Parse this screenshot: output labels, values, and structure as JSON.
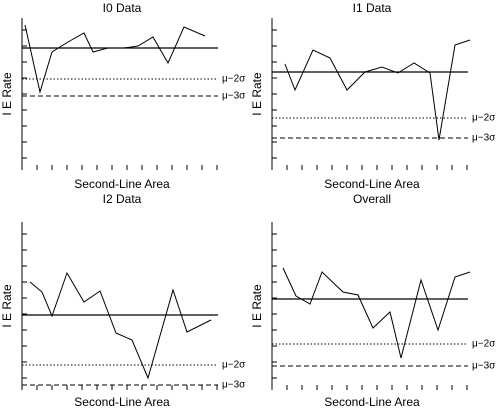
{
  "chart_data": [
    {
      "type": "line",
      "title": "I0 Data",
      "xlabel": "Second-Line Area",
      "ylabel": "I E Rate",
      "x": [
        3,
        18,
        30,
        46,
        62,
        71,
        86,
        102,
        116,
        131,
        146,
        162,
        183
      ],
      "values": [
        145,
        78,
        118,
        128,
        137,
        118,
        122,
        122,
        124,
        133,
        107,
        143,
        134
      ],
      "xlim": [
        0,
        200
      ],
      "ylim": [
        0,
        152
      ],
      "xticks": [
        0,
        15,
        30,
        45,
        60,
        75,
        90,
        105,
        120,
        135,
        150,
        165,
        180,
        195
      ],
      "yticks": [
        12,
        28,
        44,
        60,
        76,
        92,
        108,
        124,
        140
      ],
      "lines": [
        {
          "value": 122,
          "style": "solid"
        },
        {
          "value": 91,
          "style": "dotted",
          "label": "μ−2σ"
        },
        {
          "value": 74,
          "style": "dashed",
          "label": "μ−3σ"
        }
      ]
    },
    {
      "type": "line",
      "title": "I1 Data",
      "xlabel": "Second-Line Area",
      "ylabel": "I E Rate",
      "x": [
        13,
        23,
        41,
        58,
        75,
        93,
        110,
        126,
        142,
        158,
        167,
        183,
        198
      ],
      "values": [
        106,
        80,
        120,
        112,
        80,
        98,
        103,
        97,
        107,
        97,
        30,
        125,
        130
      ],
      "xlim": [
        0,
        200
      ],
      "ylim": [
        0,
        152
      ],
      "xticks": [
        0,
        15,
        30,
        45,
        60,
        75,
        90,
        105,
        120,
        135,
        150,
        165,
        180,
        195
      ],
      "yticks": [
        12,
        28,
        44,
        60,
        76,
        92,
        108,
        124,
        140
      ],
      "lines": [
        {
          "value": 98,
          "style": "solid"
        },
        {
          "value": 52,
          "style": "dotted",
          "label": "μ−2σ"
        },
        {
          "value": 32,
          "style": "dashed",
          "label": "μ−3σ"
        }
      ]
    },
    {
      "type": "line",
      "title": "I2 Data",
      "xlabel": "Second-Line Area",
      "ylabel": "I E Rate",
      "x": [
        8,
        20,
        30,
        45,
        62,
        78,
        94,
        110,
        126,
        151,
        165,
        189
      ],
      "values": [
        108,
        98,
        74,
        117,
        88,
        99,
        57,
        50,
        12,
        100,
        58,
        70
      ],
      "xlim": [
        0,
        200
      ],
      "ylim": [
        0,
        168
      ],
      "xticks": [
        0,
        15,
        30,
        45,
        60,
        75,
        90,
        105,
        120,
        135,
        150,
        165,
        180,
        195
      ],
      "yticks": [
        12,
        28,
        44,
        60,
        76,
        92,
        108,
        124,
        140,
        156
      ],
      "lines": [
        {
          "value": 75,
          "style": "solid"
        },
        {
          "value": 25,
          "style": "dotted",
          "label": "μ−2σ"
        },
        {
          "value": 5,
          "style": "dashed",
          "label": "μ−3σ"
        }
      ]
    },
    {
      "type": "line",
      "title": "Overall",
      "xlabel": "Second-Line Area",
      "ylabel": "I E Rate",
      "x": [
        11,
        24,
        38,
        50,
        71,
        86,
        101,
        118,
        129,
        149,
        166,
        183,
        198
      ],
      "values": [
        122,
        94,
        86,
        118,
        98,
        95,
        62,
        78,
        32,
        110,
        60,
        113,
        118
      ],
      "xlim": [
        0,
        200
      ],
      "ylim": [
        0,
        168
      ],
      "xticks": [
        0,
        15,
        30,
        45,
        60,
        75,
        90,
        105,
        120,
        135,
        150,
        165,
        180,
        195
      ],
      "yticks": [
        12,
        28,
        44,
        60,
        76,
        92,
        108,
        124,
        140,
        156
      ],
      "lines": [
        {
          "value": 91,
          "style": "solid"
        },
        {
          "value": 46,
          "style": "dotted",
          "label": "μ−2σ"
        },
        {
          "value": 24,
          "style": "dashed",
          "label": "μ−3σ"
        }
      ]
    }
  ]
}
